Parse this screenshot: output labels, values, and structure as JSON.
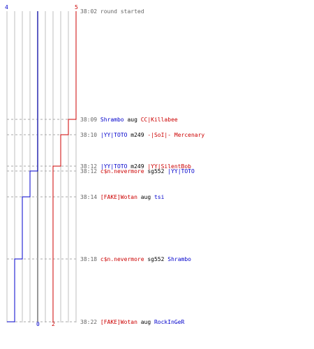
{
  "colors": {
    "team_blue": "#0000cc",
    "team_red": "#cc0000",
    "neutral": "#000000",
    "time": "#666666",
    "gridline": "#bfbfbf",
    "midline": "#777777",
    "guide": "#aaaaaa"
  },
  "score_labels": {
    "blue_start": "4",
    "red_start": "5",
    "blue_end": "0",
    "red_end": "2"
  },
  "chart_data": {
    "type": "line",
    "x_unit": "kills",
    "y_unit": "time",
    "series": [
      {
        "team": "blue",
        "points": [
          [
            4,
            "38:02"
          ],
          [
            4,
            "38:12"
          ],
          [
            3,
            "38:12"
          ],
          [
            3,
            "38:14"
          ],
          [
            2,
            "38:14"
          ],
          [
            2,
            "38:18"
          ],
          [
            1,
            "38:18"
          ],
          [
            1,
            "38:22"
          ],
          [
            0,
            "38:22"
          ]
        ]
      },
      {
        "team": "red",
        "points": [
          [
            5,
            "38:02"
          ],
          [
            5,
            "38:09"
          ],
          [
            4,
            "38:09"
          ],
          [
            4,
            "38:10"
          ],
          [
            3,
            "38:10"
          ],
          [
            3,
            "38:12"
          ],
          [
            2,
            "38:12"
          ],
          [
            2,
            "38:22"
          ]
        ]
      }
    ]
  },
  "events": [
    {
      "time": "38:02",
      "parts": [
        {
          "text": "round started",
          "team": "neutral_gray"
        }
      ]
    },
    {
      "time": "38:09",
      "parts": [
        {
          "text": "Shrambo",
          "team": "blue"
        },
        {
          "text": " aug ",
          "team": "neutral"
        },
        {
          "text": "CC|Killabee",
          "team": "red"
        }
      ]
    },
    {
      "time": "38:10",
      "parts": [
        {
          "text": "|YY|TOTO",
          "team": "blue"
        },
        {
          "text": " m249 ",
          "team": "neutral"
        },
        {
          "text": "-|SoI|- Mercenary",
          "team": "red"
        }
      ]
    },
    {
      "time": "38:12",
      "parts": [
        {
          "text": "|YY|TOTO",
          "team": "blue"
        },
        {
          "text": " m249 ",
          "team": "neutral"
        },
        {
          "text": "|YY|SilentBob",
          "team": "red"
        }
      ]
    },
    {
      "time": "38:12",
      "parts": [
        {
          "text": "c$n.nevermore",
          "team": "red"
        },
        {
          "text": " sg552 ",
          "team": "neutral"
        },
        {
          "text": "|YY|TOTO",
          "team": "blue"
        }
      ]
    },
    {
      "time": "38:14",
      "parts": [
        {
          "text": "[FAKE]Wotan",
          "team": "red"
        },
        {
          "text": " aug ",
          "team": "neutral"
        },
        {
          "text": "tsi",
          "team": "blue"
        }
      ]
    },
    {
      "time": "38:18",
      "parts": [
        {
          "text": "c$n.nevermore",
          "team": "red"
        },
        {
          "text": " sg552 ",
          "team": "neutral"
        },
        {
          "text": "Shrambo",
          "team": "blue"
        }
      ]
    },
    {
      "time": "38:22",
      "parts": [
        {
          "text": "[FAKE]Wotan",
          "team": "red"
        },
        {
          "text": " aug ",
          "team": "neutral"
        },
        {
          "text": "RockInGeR",
          "team": "blue"
        }
      ]
    }
  ]
}
